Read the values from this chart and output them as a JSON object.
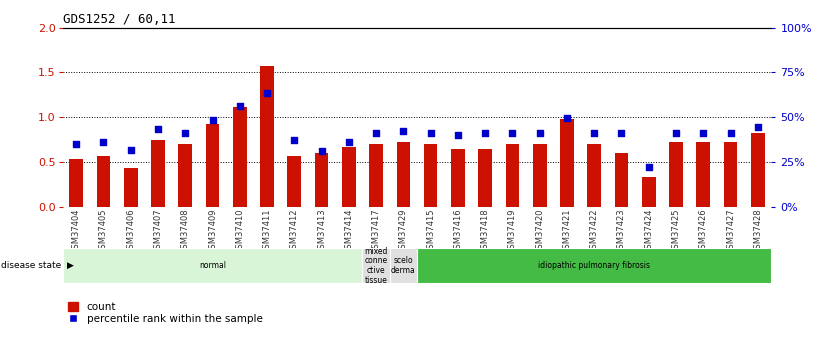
{
  "title": "GDS1252 / 60,11",
  "samples": [
    "GSM37404",
    "GSM37405",
    "GSM37406",
    "GSM37407",
    "GSM37408",
    "GSM37409",
    "GSM37410",
    "GSM37411",
    "GSM37412",
    "GSM37413",
    "GSM37414",
    "GSM37417",
    "GSM37429",
    "GSM37415",
    "GSM37416",
    "GSM37418",
    "GSM37419",
    "GSM37420",
    "GSM37421",
    "GSM37422",
    "GSM37423",
    "GSM37424",
    "GSM37425",
    "GSM37426",
    "GSM37427",
    "GSM37428"
  ],
  "counts": [
    0.54,
    0.57,
    0.43,
    0.75,
    0.7,
    0.92,
    1.12,
    1.57,
    0.57,
    0.6,
    0.67,
    0.7,
    0.72,
    0.7,
    0.65,
    0.65,
    0.7,
    0.7,
    0.98,
    0.7,
    0.6,
    0.33,
    0.72,
    0.73,
    0.73,
    0.82
  ],
  "percentiles_pct": [
    35,
    36,
    31.5,
    43.5,
    41.5,
    48.5,
    56.5,
    63.5,
    37.5,
    31,
    36.5,
    41,
    42.5,
    41,
    40,
    41,
    41,
    41.5,
    49.5,
    41.5,
    41,
    22.5,
    41.5,
    41.5,
    41.5,
    44.5
  ],
  "bar_color": "#CC1100",
  "dot_color": "#0000CC",
  "ylim_left": [
    0,
    2
  ],
  "ylim_right": [
    0,
    100
  ],
  "yticks_left": [
    0,
    0.5,
    1.0,
    1.5,
    2.0
  ],
  "yticks_right": [
    0,
    25,
    50,
    75,
    100
  ],
  "disease_groups": [
    {
      "label": "normal",
      "start": 0,
      "end": 11,
      "color": "#d8f5d8"
    },
    {
      "label": "mixed\nconne\nctive\ntissue",
      "start": 11,
      "end": 12,
      "color": "#e0e0e0"
    },
    {
      "label": "scelo\nderma",
      "start": 12,
      "end": 13,
      "color": "#e0e0e0"
    },
    {
      "label": "idiopathic pulmonary fibrosis",
      "start": 13,
      "end": 26,
      "color": "#44bb44"
    }
  ],
  "left_axis_color": "#CC1100",
  "right_axis_color": "#0000CC",
  "title_color": "#000000"
}
